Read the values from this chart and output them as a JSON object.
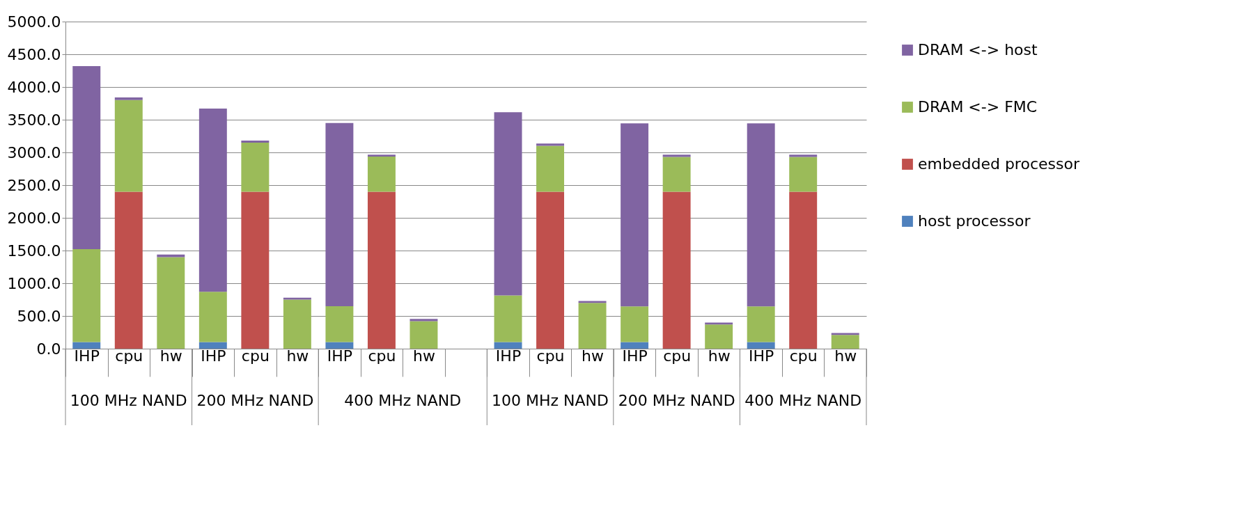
{
  "chart_data": {
    "type": "bar",
    "stacked": true,
    "categories": [
      "IHP",
      "cpu",
      "hw",
      "IHP",
      "cpu",
      "hw",
      "IHP",
      "cpu",
      "hw",
      null,
      "IHP",
      "cpu",
      "hw",
      "IHP",
      "cpu",
      "hw",
      "IHP",
      "cpu",
      "hw"
    ],
    "series": [
      {
        "name": "host processor",
        "color": "#4f81bd",
        "values": [
          100,
          null,
          null,
          100,
          null,
          null,
          100,
          null,
          null,
          null,
          100,
          null,
          null,
          100,
          null,
          null,
          100,
          null,
          null
        ]
      },
      {
        "name": "embedded processor",
        "color": "#c0504d",
        "values": [
          null,
          2400,
          null,
          null,
          2400,
          null,
          null,
          2400,
          null,
          null,
          null,
          2400,
          null,
          null,
          2400,
          null,
          null,
          2400,
          null
        ]
      },
      {
        "name": "DRAM <-> FMC",
        "color": "#9bbb59",
        "values": [
          1420,
          1400,
          1400,
          770,
          750,
          750,
          550,
          535,
          420,
          null,
          715,
          700,
          700,
          545,
          530,
          370,
          545,
          530,
          210
        ]
      },
      {
        "name": "DRAM <-> host",
        "color": "#8064a2",
        "values": [
          2800,
          40,
          40,
          2800,
          30,
          30,
          2800,
          30,
          35,
          null,
          2800,
          35,
          30,
          2800,
          35,
          30,
          2800,
          35,
          30
        ]
      }
    ],
    "annotations": [
      "100 MHz NAND",
      "200 MHz NAND",
      "400 MHz NAND",
      "100 MHz NAND",
      "200 MHz NAND",
      "400 MHz NAND"
    ],
    "ylim": [
      0,
      5000
    ],
    "yticks": [
      {
        "value": 0,
        "label": "0.0"
      },
      {
        "value": 500,
        "label": "500.0"
      },
      {
        "value": 1000,
        "label": "1000.0"
      },
      {
        "value": 1500,
        "label": "1500.0"
      },
      {
        "value": 2000,
        "label": "2000.0"
      },
      {
        "value": 2500,
        "label": "2500.0"
      },
      {
        "value": 3000,
        "label": "3000.0"
      },
      {
        "value": 3500,
        "label": "3500.0"
      },
      {
        "value": 4000,
        "label": "4000.0"
      },
      {
        "value": 4500,
        "label": "4500.0"
      },
      {
        "value": 5000,
        "label": "5000.0"
      }
    ],
    "grid": "y",
    "legend": "right"
  }
}
